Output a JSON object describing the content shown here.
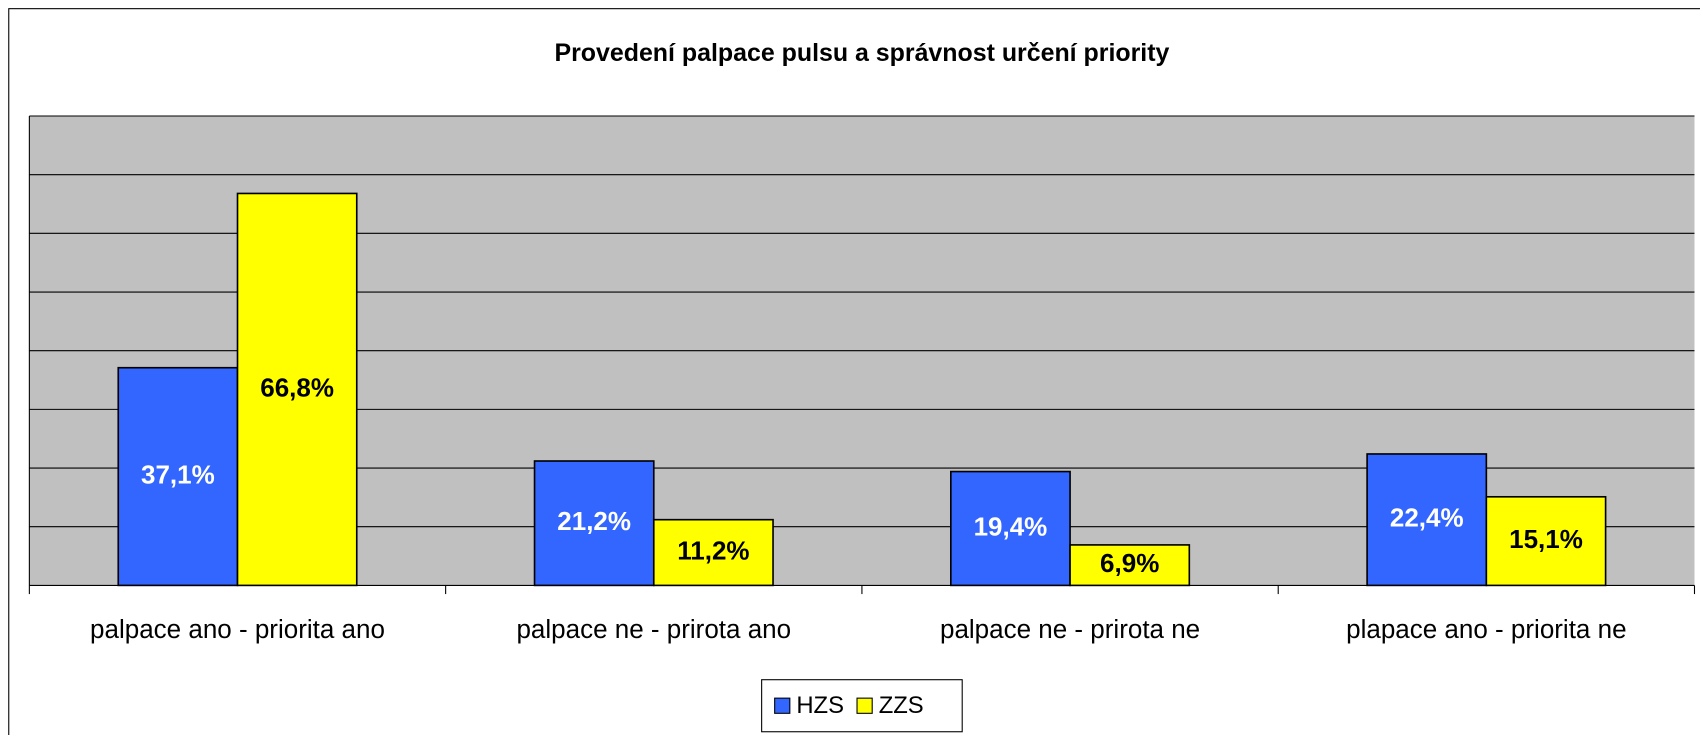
{
  "chart_data": {
    "type": "bar",
    "title": "Provedení palpace pulsu a správnost určení priority",
    "categories": [
      "palpace ano - priorita ano",
      "palpace ne - prirota ano",
      "palpace ne - prirota ne",
      "plapace ano - priorita ne"
    ],
    "series": [
      {
        "name": "HZS",
        "color": "#3366ff",
        "values": [
          37.1,
          21.2,
          19.4,
          22.4
        ],
        "value_labels": [
          "37,1%",
          "21,2%",
          "19,4%",
          "22,4%"
        ]
      },
      {
        "name": "ZZS",
        "color": "#ffff00",
        "values": [
          66.8,
          11.2,
          6.9,
          15.1
        ],
        "value_labels": [
          "66,8%",
          "11,2%",
          "6,9%",
          "15,1%"
        ]
      }
    ],
    "ylim": [
      0,
      80
    ],
    "yticks": [
      0,
      10,
      20,
      30,
      40,
      50,
      60,
      70,
      80
    ],
    "grid": true,
    "legend": "bottom"
  }
}
